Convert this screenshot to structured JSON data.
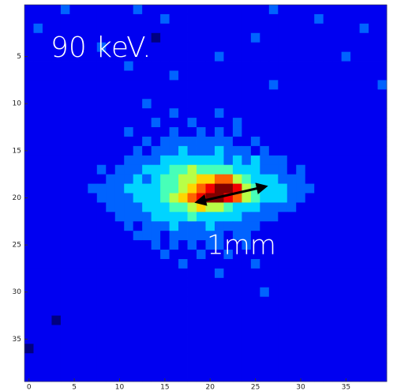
{
  "chart_data": {
    "type": "heatmap",
    "colormap": "jet",
    "annotations": [
      "90 keV.",
      "1mm"
    ],
    "xlim": [
      -0.5,
      39.5
    ],
    "ylim": [
      39.5,
      -0.5
    ],
    "xticks": [
      0,
      5,
      10,
      15,
      20,
      25,
      30,
      35
    ],
    "yticks": [
      5,
      10,
      15,
      20,
      25,
      30,
      35
    ],
    "z": [
      [
        1,
        1,
        1,
        1,
        2,
        1,
        1,
        1,
        1,
        1,
        1,
        1,
        2,
        1,
        1,
        1,
        1,
        1,
        1,
        1,
        1,
        1,
        1,
        1,
        1,
        1,
        1,
        2,
        1,
        1,
        1,
        1,
        1,
        1,
        1,
        1,
        1,
        1,
        1,
        1
      ],
      [
        1,
        1,
        1,
        1,
        1,
        1,
        1,
        1,
        1,
        1,
        1,
        1,
        1,
        1,
        1,
        2,
        1,
        1,
        1,
        1,
        1,
        1,
        1,
        1,
        1,
        1,
        1,
        1,
        1,
        1,
        1,
        1,
        2,
        1,
        1,
        1,
        1,
        1,
        1,
        1
      ],
      [
        1,
        2,
        1,
        1,
        1,
        1,
        1,
        1,
        1,
        1,
        1,
        1,
        1,
        1,
        1,
        1,
        1,
        1,
        1,
        1,
        1,
        1,
        1,
        1,
        1,
        1,
        1,
        1,
        1,
        1,
        1,
        1,
        1,
        1,
        1,
        1,
        1,
        2,
        1,
        1
      ],
      [
        1,
        1,
        1,
        1,
        1,
        1,
        1,
        1,
        1,
        1,
        1,
        1,
        1,
        1,
        0,
        1,
        1,
        1,
        1,
        1,
        1,
        1,
        1,
        1,
        1,
        2,
        1,
        1,
        1,
        1,
        1,
        1,
        1,
        1,
        1,
        1,
        1,
        1,
        1,
        1
      ],
      [
        1,
        1,
        1,
        1,
        1,
        1,
        1,
        1,
        2,
        1,
        1,
        1,
        1,
        1,
        1,
        1,
        1,
        1,
        1,
        1,
        1,
        1,
        1,
        1,
        1,
        1,
        1,
        1,
        1,
        1,
        1,
        1,
        1,
        1,
        1,
        1,
        1,
        1,
        1,
        1
      ],
      [
        1,
        1,
        1,
        1,
        1,
        1,
        1,
        1,
        1,
        1,
        1,
        1,
        1,
        1,
        1,
        1,
        1,
        1,
        1,
        1,
        1,
        2,
        1,
        1,
        1,
        1,
        1,
        1,
        1,
        1,
        1,
        1,
        1,
        1,
        1,
        2,
        1,
        1,
        1,
        1
      ],
      [
        1,
        1,
        1,
        1,
        1,
        1,
        1,
        1,
        1,
        1,
        1,
        2,
        1,
        1,
        1,
        1,
        1,
        1,
        1,
        1,
        1,
        1,
        1,
        1,
        1,
        1,
        1,
        1,
        1,
        1,
        1,
        1,
        1,
        1,
        1,
        1,
        1,
        1,
        1,
        1
      ],
      [
        1,
        1,
        1,
        1,
        1,
        1,
        1,
        1,
        1,
        1,
        1,
        1,
        1,
        1,
        1,
        1,
        2,
        1,
        1,
        1,
        1,
        1,
        1,
        1,
        1,
        1,
        1,
        1,
        1,
        1,
        1,
        1,
        1,
        1,
        1,
        1,
        1,
        1,
        1,
        1
      ],
      [
        1,
        1,
        1,
        1,
        1,
        1,
        1,
        1,
        1,
        1,
        1,
        1,
        1,
        1,
        1,
        1,
        1,
        1,
        1,
        1,
        1,
        1,
        1,
        1,
        1,
        1,
        1,
        2,
        1,
        1,
        1,
        1,
        1,
        1,
        1,
        1,
        1,
        1,
        1,
        2
      ],
      [
        1,
        1,
        1,
        1,
        1,
        1,
        1,
        1,
        1,
        1,
        1,
        1,
        1,
        1,
        1,
        1,
        1,
        1,
        1,
        1,
        1,
        1,
        1,
        1,
        1,
        1,
        1,
        1,
        1,
        1,
        1,
        1,
        1,
        1,
        1,
        1,
        1,
        1,
        1,
        1
      ],
      [
        1,
        1,
        1,
        1,
        1,
        1,
        1,
        1,
        1,
        1,
        1,
        1,
        1,
        2,
        1,
        1,
        1,
        1,
        1,
        1,
        1,
        1,
        1,
        1,
        1,
        1,
        1,
        1,
        1,
        1,
        1,
        1,
        1,
        1,
        1,
        1,
        1,
        1,
        1,
        1
      ],
      [
        1,
        1,
        1,
        1,
        1,
        1,
        1,
        1,
        1,
        1,
        1,
        1,
        1,
        1,
        1,
        1,
        2,
        1,
        1,
        1,
        1,
        2,
        1,
        1,
        1,
        1,
        1,
        1,
        1,
        1,
        1,
        1,
        1,
        1,
        1,
        1,
        1,
        1,
        1,
        1
      ],
      [
        1,
        1,
        1,
        1,
        1,
        1,
        1,
        1,
        1,
        1,
        1,
        1,
        1,
        1,
        2,
        1,
        1,
        1,
        2,
        1,
        1,
        1,
        1,
        2,
        1,
        1,
        1,
        1,
        1,
        1,
        1,
        1,
        1,
        1,
        1,
        1,
        1,
        1,
        1,
        1
      ],
      [
        1,
        1,
        1,
        1,
        1,
        1,
        1,
        1,
        1,
        1,
        1,
        2,
        1,
        1,
        1,
        1,
        2,
        1,
        1,
        2,
        1,
        2,
        1,
        2,
        1,
        1,
        1,
        1,
        1,
        1,
        1,
        1,
        1,
        1,
        1,
        1,
        1,
        1,
        1,
        1
      ],
      [
        1,
        1,
        1,
        1,
        1,
        1,
        1,
        1,
        1,
        1,
        1,
        1,
        1,
        2,
        1,
        2,
        2,
        2,
        2,
        2,
        2,
        2,
        2,
        1,
        1,
        2,
        1,
        1,
        1,
        1,
        1,
        1,
        1,
        1,
        1,
        1,
        1,
        1,
        1,
        1
      ],
      [
        1,
        1,
        1,
        1,
        1,
        1,
        1,
        1,
        1,
        1,
        1,
        1,
        2,
        1,
        2,
        2,
        2,
        3,
        2,
        2,
        2,
        3,
        2,
        2,
        2,
        1,
        2,
        1,
        1,
        1,
        1,
        1,
        1,
        1,
        1,
        1,
        1,
        1,
        1,
        1
      ],
      [
        1,
        1,
        1,
        1,
        1,
        1,
        1,
        1,
        1,
        1,
        1,
        2,
        2,
        2,
        2,
        3,
        3,
        3,
        3,
        3,
        3,
        3,
        2,
        3,
        2,
        3,
        2,
        2,
        2,
        1,
        1,
        1,
        1,
        1,
        1,
        1,
        1,
        1,
        1,
        1
      ],
      [
        1,
        1,
        1,
        1,
        1,
        1,
        1,
        1,
        2,
        1,
        2,
        2,
        2,
        3,
        3,
        3,
        4,
        4,
        5,
        4,
        4,
        4,
        4,
        3,
        3,
        3,
        2,
        2,
        2,
        1,
        2,
        1,
        1,
        1,
        1,
        1,
        1,
        1,
        1,
        1
      ],
      [
        1,
        1,
        1,
        1,
        1,
        1,
        1,
        1,
        1,
        2,
        2,
        2,
        3,
        2,
        3,
        4,
        4,
        5,
        5,
        6,
        6,
        7,
        7,
        5,
        4,
        3,
        3,
        3,
        2,
        2,
        2,
        1,
        1,
        1,
        1,
        1,
        1,
        1,
        1,
        1
      ],
      [
        1,
        1,
        1,
        1,
        1,
        1,
        1,
        2,
        2,
        2,
        2,
        3,
        3,
        3,
        3,
        4,
        4,
        5,
        6,
        7,
        8,
        9,
        9,
        8,
        5,
        4,
        3,
        3,
        3,
        2,
        2,
        2,
        1,
        1,
        1,
        1,
        1,
        1,
        1,
        1
      ],
      [
        1,
        1,
        1,
        1,
        1,
        1,
        1,
        1,
        2,
        2,
        2,
        2,
        3,
        3,
        3,
        4,
        5,
        6,
        7,
        8,
        9,
        9,
        8,
        7,
        5,
        4,
        3,
        3,
        3,
        2,
        2,
        1,
        1,
        1,
        1,
        1,
        1,
        1,
        1,
        1
      ],
      [
        1,
        1,
        1,
        1,
        1,
        1,
        1,
        1,
        1,
        2,
        2,
        2,
        2,
        3,
        3,
        3,
        4,
        4,
        5,
        6,
        5,
        5,
        4,
        3,
        3,
        3,
        2,
        2,
        2,
        2,
        1,
        1,
        1,
        1,
        1,
        1,
        1,
        1,
        1,
        1
      ],
      [
        1,
        1,
        1,
        1,
        1,
        1,
        1,
        1,
        1,
        1,
        2,
        2,
        2,
        2,
        3,
        3,
        3,
        3,
        4,
        3,
        3,
        3,
        3,
        3,
        2,
        2,
        2,
        2,
        1,
        1,
        1,
        1,
        1,
        1,
        1,
        1,
        1,
        1,
        1,
        1
      ],
      [
        1,
        1,
        1,
        1,
        1,
        1,
        1,
        1,
        1,
        1,
        1,
        2,
        1,
        2,
        2,
        2,
        3,
        2,
        2,
        2,
        3,
        2,
        2,
        2,
        2,
        2,
        1,
        1,
        1,
        1,
        1,
        1,
        1,
        1,
        1,
        1,
        1,
        1,
        1,
        1
      ],
      [
        1,
        1,
        1,
        1,
        1,
        1,
        1,
        1,
        1,
        1,
        1,
        1,
        2,
        2,
        2,
        1,
        2,
        2,
        2,
        2,
        2,
        2,
        1,
        2,
        2,
        1,
        1,
        1,
        1,
        1,
        1,
        1,
        1,
        1,
        1,
        1,
        1,
        1,
        1,
        1
      ],
      [
        1,
        1,
        1,
        1,
        1,
        1,
        1,
        1,
        1,
        1,
        1,
        1,
        1,
        1,
        2,
        1,
        2,
        1,
        2,
        1,
        2,
        2,
        1,
        1,
        2,
        1,
        1,
        1,
        1,
        1,
        1,
        1,
        1,
        1,
        1,
        1,
        1,
        1,
        1,
        1
      ],
      [
        1,
        1,
        1,
        1,
        1,
        1,
        1,
        1,
        1,
        1,
        1,
        1,
        1,
        1,
        1,
        2,
        1,
        1,
        1,
        2,
        1,
        1,
        2,
        1,
        1,
        1,
        1,
        1,
        1,
        1,
        1,
        1,
        1,
        1,
        1,
        1,
        1,
        1,
        1,
        1
      ],
      [
        1,
        1,
        1,
        1,
        1,
        1,
        1,
        1,
        1,
        1,
        1,
        1,
        1,
        1,
        1,
        1,
        1,
        2,
        1,
        1,
        1,
        1,
        1,
        1,
        1,
        2,
        1,
        1,
        1,
        1,
        1,
        1,
        1,
        1,
        1,
        1,
        1,
        1,
        1,
        1
      ],
      [
        1,
        1,
        1,
        1,
        1,
        1,
        1,
        1,
        1,
        1,
        1,
        1,
        1,
        1,
        1,
        1,
        1,
        1,
        1,
        1,
        1,
        2,
        1,
        1,
        1,
        1,
        1,
        1,
        1,
        1,
        1,
        1,
        1,
        1,
        1,
        1,
        1,
        1,
        1,
        1
      ],
      [
        1,
        1,
        1,
        1,
        1,
        1,
        1,
        1,
        1,
        1,
        1,
        1,
        1,
        1,
        1,
        1,
        1,
        1,
        1,
        1,
        1,
        1,
        1,
        1,
        1,
        1,
        1,
        1,
        1,
        1,
        1,
        1,
        1,
        1,
        1,
        1,
        1,
        1,
        1,
        1
      ],
      [
        1,
        1,
        1,
        1,
        1,
        1,
        1,
        1,
        1,
        1,
        1,
        1,
        1,
        1,
        1,
        1,
        1,
        1,
        1,
        1,
        1,
        1,
        1,
        1,
        1,
        1,
        2,
        1,
        1,
        1,
        1,
        1,
        1,
        1,
        1,
        1,
        1,
        1,
        1,
        1
      ],
      [
        1,
        1,
        1,
        1,
        1,
        1,
        1,
        1,
        1,
        1,
        1,
        1,
        1,
        1,
        1,
        1,
        1,
        1,
        1,
        1,
        1,
        1,
        1,
        1,
        1,
        1,
        1,
        1,
        1,
        1,
        1,
        1,
        1,
        1,
        1,
        1,
        1,
        1,
        1,
        1
      ],
      [
        1,
        1,
        1,
        1,
        1,
        1,
        1,
        1,
        1,
        1,
        1,
        1,
        1,
        1,
        1,
        1,
        1,
        1,
        1,
        1,
        1,
        1,
        1,
        1,
        1,
        1,
        1,
        1,
        1,
        1,
        1,
        1,
        1,
        1,
        1,
        1,
        1,
        1,
        1,
        1
      ],
      [
        1,
        1,
        1,
        0,
        1,
        1,
        1,
        1,
        1,
        1,
        1,
        1,
        1,
        1,
        1,
        1,
        1,
        1,
        1,
        1,
        1,
        1,
        1,
        1,
        1,
        1,
        1,
        1,
        1,
        1,
        1,
        1,
        1,
        1,
        1,
        1,
        1,
        1,
        1,
        1
      ],
      [
        1,
        1,
        1,
        1,
        1,
        1,
        1,
        1,
        1,
        1,
        1,
        1,
        1,
        1,
        1,
        1,
        1,
        1,
        1,
        1,
        1,
        1,
        1,
        1,
        1,
        1,
        1,
        1,
        1,
        1,
        1,
        1,
        1,
        1,
        1,
        1,
        1,
        1,
        1,
        1
      ],
      [
        1,
        1,
        1,
        1,
        1,
        1,
        1,
        1,
        1,
        1,
        1,
        1,
        1,
        1,
        1,
        1,
        1,
        1,
        1,
        1,
        1,
        1,
        1,
        1,
        1,
        1,
        1,
        1,
        1,
        1,
        1,
        1,
        1,
        1,
        1,
        1,
        1,
        1,
        1,
        1
      ],
      [
        0,
        1,
        1,
        1,
        1,
        1,
        1,
        1,
        1,
        1,
        1,
        1,
        1,
        1,
        1,
        1,
        1,
        1,
        1,
        1,
        1,
        1,
        1,
        1,
        1,
        1,
        1,
        1,
        1,
        1,
        1,
        1,
        1,
        1,
        1,
        1,
        1,
        1,
        1,
        1
      ],
      [
        1,
        1,
        1,
        1,
        1,
        1,
        1,
        1,
        1,
        1,
        1,
        1,
        1,
        1,
        1,
        1,
        1,
        1,
        1,
        1,
        1,
        1,
        1,
        1,
        1,
        1,
        1,
        1,
        1,
        1,
        1,
        1,
        1,
        1,
        1,
        1,
        1,
        1,
        1,
        1
      ],
      [
        1,
        1,
        1,
        1,
        1,
        1,
        1,
        1,
        1,
        1,
        1,
        1,
        1,
        1,
        1,
        1,
        1,
        1,
        1,
        1,
        1,
        1,
        1,
        1,
        1,
        1,
        1,
        1,
        1,
        1,
        1,
        1,
        1,
        1,
        1,
        1,
        1,
        1,
        1,
        1
      ],
      [
        1,
        1,
        1,
        1,
        1,
        1,
        1,
        1,
        1,
        1,
        1,
        1,
        1,
        1,
        1,
        1,
        1,
        1,
        1,
        1,
        1,
        1,
        1,
        1,
        1,
        1,
        1,
        1,
        1,
        1,
        1,
        1,
        1,
        1,
        1,
        1,
        1,
        1,
        1,
        1
      ]
    ]
  }
}
